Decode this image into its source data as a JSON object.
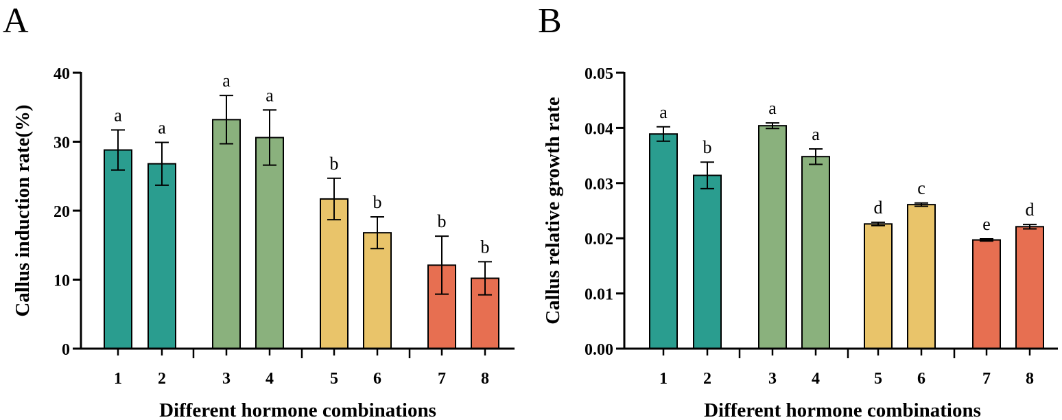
{
  "chart_data": [
    {
      "panel": "A",
      "type": "bar",
      "categories": [
        "1",
        "2",
        "3",
        "4",
        "5",
        "6",
        "7",
        "8"
      ],
      "values": [
        28.8,
        26.8,
        33.2,
        30.6,
        21.7,
        16.8,
        12.1,
        10.2
      ],
      "errors": [
        2.9,
        3.1,
        3.5,
        4.0,
        3.0,
        2.3,
        4.2,
        2.4
      ],
      "significance": [
        "a",
        "a",
        "a",
        "a",
        "b",
        "b",
        "b",
        "b"
      ],
      "colors": [
        "#2a9d8f",
        "#2a9d8f",
        "#8ab17d",
        "#8ab17d",
        "#e9c46a",
        "#e9c46a",
        "#e76f51",
        "#e76f51"
      ],
      "group_of": [
        0,
        0,
        1,
        1,
        2,
        2,
        3,
        3
      ],
      "xlabel": "Different hormone combinations",
      "ylabel": "Callus induction rate(%)",
      "ylim": [
        0,
        40
      ],
      "yticks": [
        0,
        10,
        20,
        30,
        40
      ],
      "ytick_labels": [
        "0",
        "10",
        "20",
        "30",
        "40"
      ]
    },
    {
      "panel": "B",
      "type": "bar",
      "categories": [
        "1",
        "2",
        "3",
        "4",
        "5",
        "6",
        "7",
        "8"
      ],
      "values": [
        0.0389,
        0.0314,
        0.0404,
        0.0348,
        0.0226,
        0.0261,
        0.0197,
        0.0221
      ],
      "errors": [
        0.0013,
        0.0024,
        0.0005,
        0.0014,
        0.0003,
        0.0003,
        0.0002,
        0.0004
      ],
      "significance": [
        "a",
        "b",
        "a",
        "a",
        "d",
        "c",
        "e",
        "d"
      ],
      "colors": [
        "#2a9d8f",
        "#2a9d8f",
        "#8ab17d",
        "#8ab17d",
        "#e9c46a",
        "#e9c46a",
        "#e76f51",
        "#e76f51"
      ],
      "group_of": [
        0,
        0,
        1,
        1,
        2,
        2,
        3,
        3
      ],
      "xlabel": "Different hormone combinations",
      "ylabel": "Callus relative growth rate",
      "ylim": [
        0,
        0.05
      ],
      "yticks": [
        0,
        0.01,
        0.02,
        0.03,
        0.04,
        0.05
      ],
      "ytick_labels": [
        "0.00",
        "0.01",
        "0.02",
        "0.03",
        "0.04",
        "0.05"
      ]
    }
  ]
}
